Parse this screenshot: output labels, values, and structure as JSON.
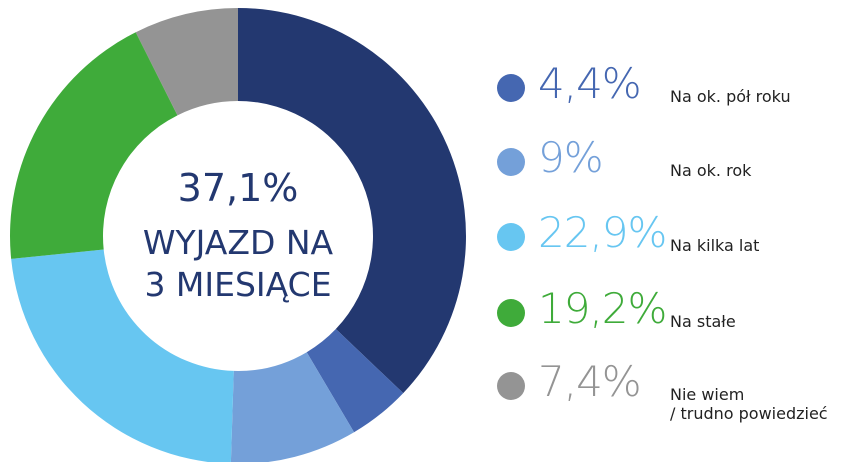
{
  "chart_data": {
    "type": "donut",
    "categories": [
      "WYJAZD NA\n3 MIESIĄCE",
      "Na ok. pół roku",
      "Na ok. rok",
      "Na kilka lat",
      "Na stałe",
      "Nie wiem\n/ trudno powiedzieć"
    ],
    "values": [
      37.1,
      4.4,
      9,
      22.9,
      19.2,
      7.4
    ],
    "value_labels": [
      "37,1%",
      "4,4%",
      "9%",
      "22,9%",
      "19,2%",
      "7,4%"
    ],
    "colors": [
      "#233870",
      "#4567b1",
      "#74a0d9",
      "#67c6f1",
      "#3fab3a",
      "#949494"
    ]
  }
}
